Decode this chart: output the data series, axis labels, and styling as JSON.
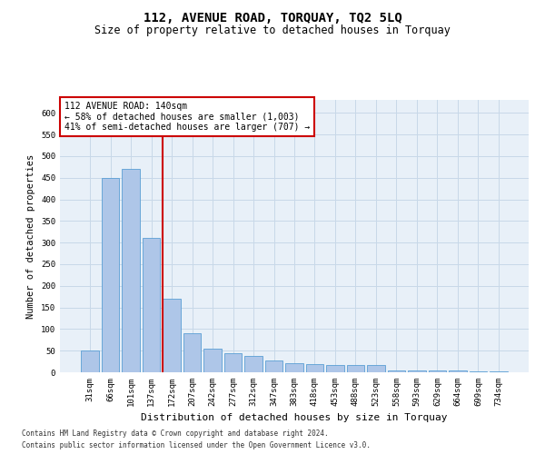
{
  "title": "112, AVENUE ROAD, TORQUAY, TQ2 5LQ",
  "subtitle": "Size of property relative to detached houses in Torquay",
  "xlabel": "Distribution of detached houses by size in Torquay",
  "ylabel": "Number of detached properties",
  "categories": [
    "31sqm",
    "66sqm",
    "101sqm",
    "137sqm",
    "172sqm",
    "207sqm",
    "242sqm",
    "277sqm",
    "312sqm",
    "347sqm",
    "383sqm",
    "418sqm",
    "453sqm",
    "488sqm",
    "523sqm",
    "558sqm",
    "593sqm",
    "629sqm",
    "664sqm",
    "699sqm",
    "734sqm"
  ],
  "values": [
    50,
    450,
    470,
    310,
    170,
    90,
    55,
    45,
    38,
    28,
    20,
    18,
    17,
    17,
    16,
    5,
    5,
    5,
    5,
    2,
    2
  ],
  "bar_color": "#aec6e8",
  "bar_edgecolor": "#5a9fd4",
  "grid_color": "#c8d8e8",
  "bg_color": "#e8f0f8",
  "annotation_box_color": "#cc0000",
  "annotation_line1": "112 AVENUE ROAD: 140sqm",
  "annotation_line2": "← 58% of detached houses are smaller (1,003)",
  "annotation_line3": "41% of semi-detached houses are larger (707) →",
  "vline_x": 3.55,
  "vline_color": "#cc0000",
  "footnote1": "Contains HM Land Registry data © Crown copyright and database right 2024.",
  "footnote2": "Contains public sector information licensed under the Open Government Licence v3.0.",
  "ylim": [
    0,
    630
  ],
  "yticks": [
    0,
    50,
    100,
    150,
    200,
    250,
    300,
    350,
    400,
    450,
    500,
    550,
    600
  ],
  "title_fontsize": 10,
  "subtitle_fontsize": 8.5,
  "annotation_fontsize": 7,
  "tick_fontsize": 6.5,
  "ylabel_fontsize": 7.5,
  "xlabel_fontsize": 8
}
